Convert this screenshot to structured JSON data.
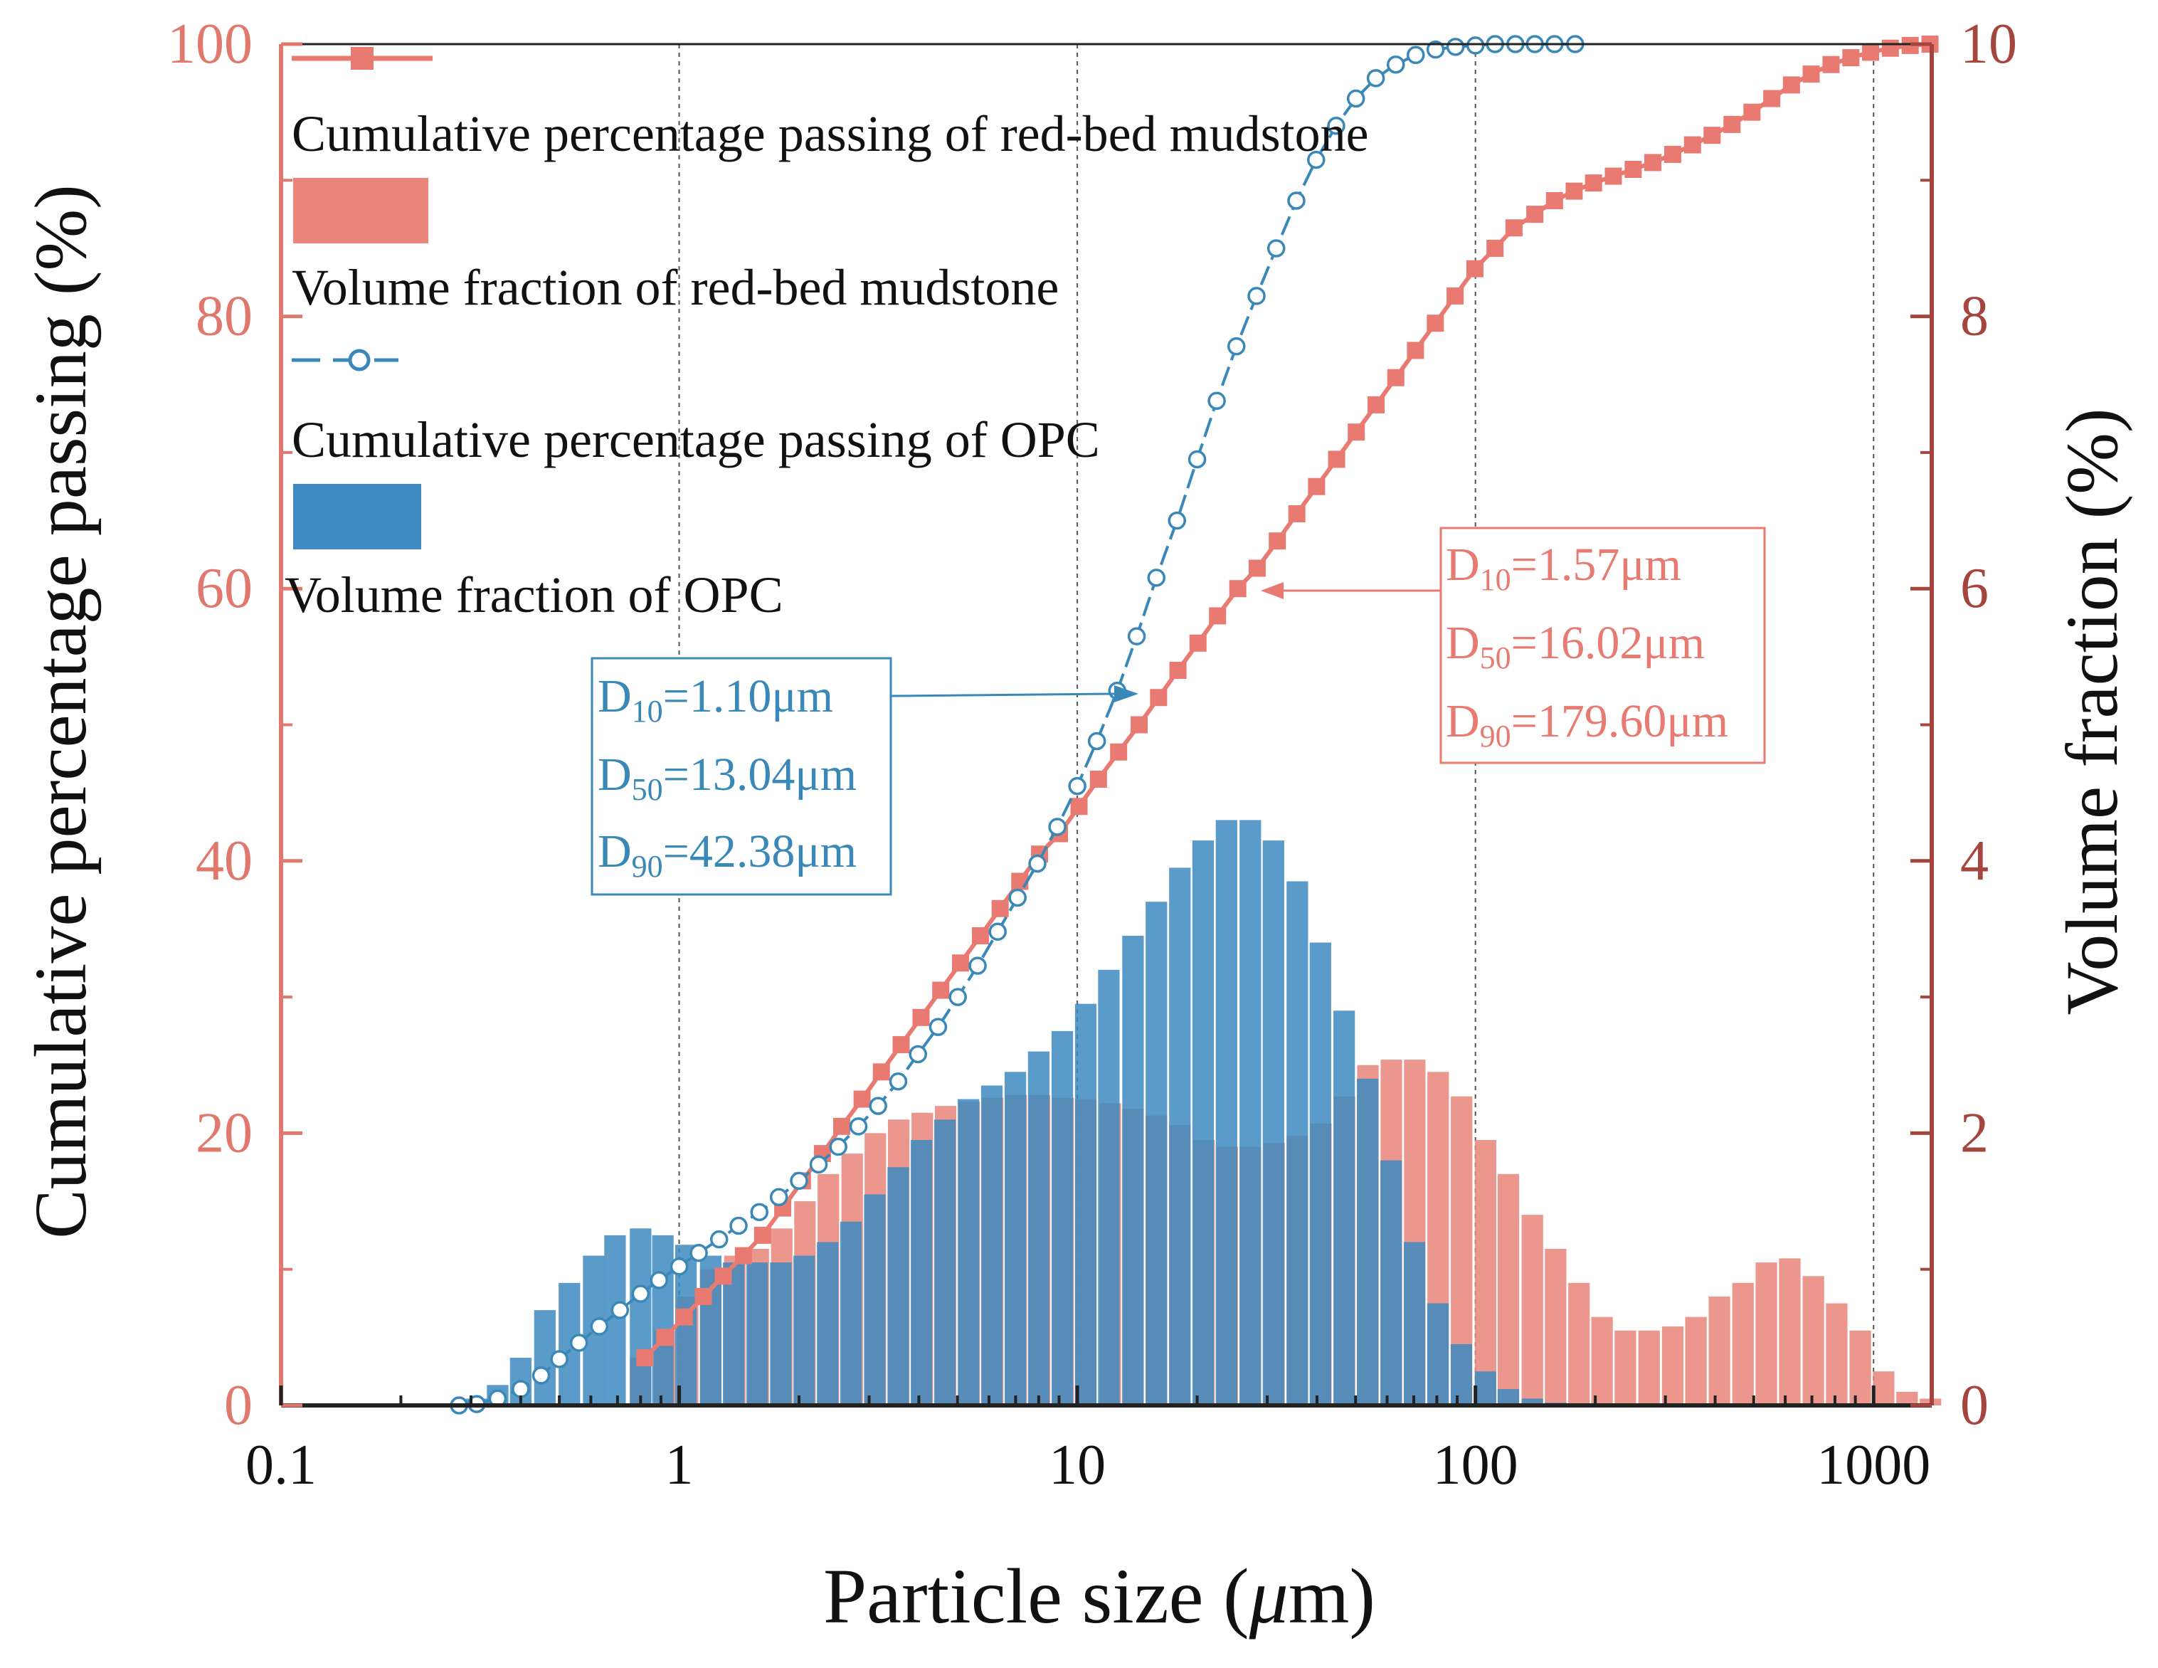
{
  "chart_data": {
    "type": "combo-bar-line",
    "title": "",
    "xlabel_main": "Particle size (",
    "xlabel_mu": "μ",
    "xlabel_unit": "m)",
    "ylabel_left": "Cumulative percentage passing (%)",
    "ylabel_right": "Volume fraction (%)",
    "x_scale": "log",
    "xlim": [
      0.1,
      1400
    ],
    "ylim_left": [
      0,
      100
    ],
    "ylim_right": [
      0,
      10
    ],
    "x_ticks": [
      0.1,
      1,
      10,
      100,
      1000
    ],
    "x_tick_labels": [
      "0.1",
      "1",
      "10",
      "100",
      "1000"
    ],
    "y_left_ticks": [
      0,
      20,
      40,
      60,
      80,
      100
    ],
    "y_left_tick_labels": [
      "0",
      "20",
      "40",
      "60",
      "80",
      "100"
    ],
    "y_right_ticks": [
      0,
      2,
      4,
      6,
      8,
      10
    ],
    "y_right_tick_labels": [
      "0",
      "2",
      "4",
      "6",
      "8",
      "10"
    ],
    "vertical_gridlines": [
      1,
      10,
      100,
      1000
    ],
    "legend": [
      {
        "label": "Cumulative percentage passing of red-bed mudstone",
        "kind": "line-square"
      },
      {
        "label": "Volume fraction of red-bed mudstone",
        "kind": "bar-red"
      },
      {
        "label": "Cumulative percentage passing of OPC",
        "kind": "line-circle"
      },
      {
        "label": "Volume fraction of OPC",
        "kind": "bar-blue"
      }
    ],
    "annotations": {
      "opc": {
        "d10": "=1.10μm",
        "d50": "=13.04μm",
        "d90": "=42.38μm"
      },
      "mudstone": {
        "d10": "=1.57μm",
        "d50": "=16.02μm",
        "d90": "=179.60μm"
      },
      "sub_d": "D",
      "sub_10": "10",
      "sub_50": "50",
      "sub_90": "90"
    },
    "colors": {
      "mudstone": "#e8867c",
      "mudstone_line": "#e87a72",
      "opc": "#3f8ac0",
      "opc_line": "#3a88b8",
      "axis_left": "#e0786e",
      "axis_right": "#a4463e",
      "grid": "#555555"
    },
    "bar_width_log": 0.054,
    "series": [
      {
        "name": "Volume fraction of red-bed mudstone",
        "axis": "right",
        "type": "bar",
        "x": [
          0.8,
          0.92,
          1.05,
          1.2,
          1.38,
          1.58,
          1.81,
          2.07,
          2.37,
          2.72,
          3.11,
          3.56,
          4.08,
          4.67,
          5.35,
          6.13,
          7.02,
          8.04,
          9.21,
          10.5,
          12.1,
          13.8,
          15.8,
          18.1,
          20.8,
          23.8,
          27.2,
          31.2,
          35.7,
          40.9,
          46.9,
          53.7,
          61.5,
          70.4,
          80.6,
          92.3,
          106,
          121,
          139,
          159,
          182,
          208,
          238,
          273,
          313,
          358,
          410,
          470,
          538,
          616,
          706,
          808,
          926,
          1060,
          1214,
          1390
        ],
        "values": [
          0.35,
          0.55,
          0.8,
          1.0,
          1.1,
          1.15,
          1.3,
          1.5,
          1.7,
          1.85,
          2.0,
          2.1,
          2.15,
          2.2,
          2.23,
          2.26,
          2.28,
          2.28,
          2.26,
          2.25,
          2.22,
          2.18,
          2.13,
          2.06,
          1.95,
          1.9,
          1.9,
          1.93,
          1.98,
          2.07,
          2.27,
          2.5,
          2.54,
          2.54,
          2.45,
          2.27,
          1.95,
          1.7,
          1.4,
          1.15,
          0.9,
          0.65,
          0.55,
          0.55,
          0.58,
          0.65,
          0.8,
          0.9,
          1.05,
          1.08,
          0.95,
          0.75,
          0.55,
          0.25,
          0.1,
          0.05
        ]
      },
      {
        "name": "Volume fraction of OPC",
        "axis": "right",
        "type": "bar",
        "x": [
          0.31,
          0.35,
          0.4,
          0.46,
          0.53,
          0.61,
          0.69,
          0.8,
          0.91,
          1.04,
          1.2,
          1.37,
          1.57,
          1.8,
          2.06,
          2.36,
          2.7,
          3.1,
          3.55,
          4.06,
          4.65,
          5.33,
          6.1,
          6.99,
          8.0,
          9.17,
          10.5,
          12.0,
          13.8,
          15.8,
          18.1,
          20.7,
          23.7,
          27.2,
          31.1,
          35.7,
          40.8,
          46.8,
          53.6,
          61.4,
          70.3,
          80.5,
          92.2,
          106,
          121,
          139,
          159
        ],
        "values": [
          0.05,
          0.15,
          0.35,
          0.7,
          0.9,
          1.1,
          1.25,
          1.3,
          1.25,
          1.18,
          1.1,
          1.05,
          1.05,
          1.05,
          1.1,
          1.2,
          1.35,
          1.55,
          1.75,
          1.95,
          2.1,
          2.25,
          2.35,
          2.45,
          2.6,
          2.75,
          2.95,
          3.2,
          3.45,
          3.7,
          3.95,
          4.15,
          4.3,
          4.3,
          4.15,
          3.85,
          3.4,
          2.9,
          2.4,
          1.8,
          1.2,
          0.75,
          0.45,
          0.25,
          0.12,
          0.05,
          0.02
        ]
      },
      {
        "name": "Cumulative percentage passing of red-bed mudstone",
        "axis": "left",
        "type": "line",
        "marker": "square",
        "x": [
          0.82,
          0.92,
          1.03,
          1.15,
          1.29,
          1.45,
          1.62,
          1.82,
          2.04,
          2.29,
          2.56,
          2.88,
          3.22,
          3.61,
          4.05,
          4.54,
          5.09,
          5.71,
          6.4,
          7.17,
          8.04,
          9.02,
          10.1,
          11.3,
          12.7,
          14.3,
          16.0,
          17.9,
          20.1,
          22.5,
          25.3,
          28.3,
          31.8,
          35.6,
          39.9,
          44.8,
          50.2,
          56.3,
          63.1,
          70.7,
          79.3,
          88.9,
          99.7,
          112,
          125,
          141,
          158,
          177,
          198,
          222,
          249,
          279,
          313,
          351,
          393,
          441,
          495,
          555,
          622,
          697,
          782,
          877,
          983,
          1102,
          1236,
          1386
        ],
        "values": [
          3.5,
          5.0,
          6.5,
          8.0,
          9.5,
          11.0,
          12.5,
          14.5,
          16.5,
          18.5,
          20.5,
          22.5,
          24.5,
          26.5,
          28.5,
          30.5,
          32.5,
          34.5,
          36.5,
          38.5,
          40.5,
          42.0,
          44.0,
          46.0,
          48.0,
          50.0,
          52.0,
          54.0,
          56.0,
          58.0,
          60.0,
          61.5,
          63.5,
          65.5,
          67.5,
          69.5,
          71.5,
          73.5,
          75.5,
          77.5,
          79.5,
          81.5,
          83.5,
          85.0,
          86.5,
          87.5,
          88.5,
          89.2,
          89.8,
          90.3,
          90.8,
          91.3,
          91.9,
          92.6,
          93.3,
          94.1,
          95.0,
          96.0,
          97.0,
          97.8,
          98.5,
          99.0,
          99.4,
          99.7,
          99.9,
          100.0
        ]
      },
      {
        "name": "Cumulative percentage passing of OPC",
        "axis": "left",
        "type": "line",
        "marker": "circle",
        "x": [
          0.28,
          0.31,
          0.35,
          0.4,
          0.45,
          0.5,
          0.56,
          0.63,
          0.71,
          0.8,
          0.89,
          1.0,
          1.12,
          1.26,
          1.41,
          1.59,
          1.78,
          2.0,
          2.24,
          2.51,
          2.82,
          3.16,
          3.55,
          3.98,
          4.47,
          5.01,
          5.62,
          6.31,
          7.08,
          7.94,
          8.91,
          10.0,
          11.2,
          12.6,
          14.1,
          15.8,
          17.8,
          20.0,
          22.4,
          25.1,
          28.2,
          31.6,
          35.5,
          39.8,
          44.7,
          50.1,
          56.2,
          63.1,
          70.8,
          79.4,
          89.1,
          100,
          112,
          126,
          141,
          158,
          178
        ],
        "values": [
          0.0,
          0.1,
          0.5,
          1.2,
          2.2,
          3.4,
          4.6,
          5.8,
          7.0,
          8.2,
          9.2,
          10.2,
          11.2,
          12.2,
          13.2,
          14.2,
          15.3,
          16.5,
          17.7,
          19.0,
          20.5,
          22.0,
          23.8,
          25.8,
          27.8,
          30.0,
          32.3,
          34.8,
          37.3,
          39.8,
          42.5,
          45.5,
          48.8,
          52.5,
          56.5,
          60.8,
          65.0,
          69.5,
          73.8,
          77.8,
          81.5,
          85.0,
          88.5,
          91.5,
          94.0,
          96.0,
          97.5,
          98.5,
          99.2,
          99.6,
          99.8,
          99.9,
          100,
          100,
          100,
          100,
          100
        ]
      }
    ]
  }
}
